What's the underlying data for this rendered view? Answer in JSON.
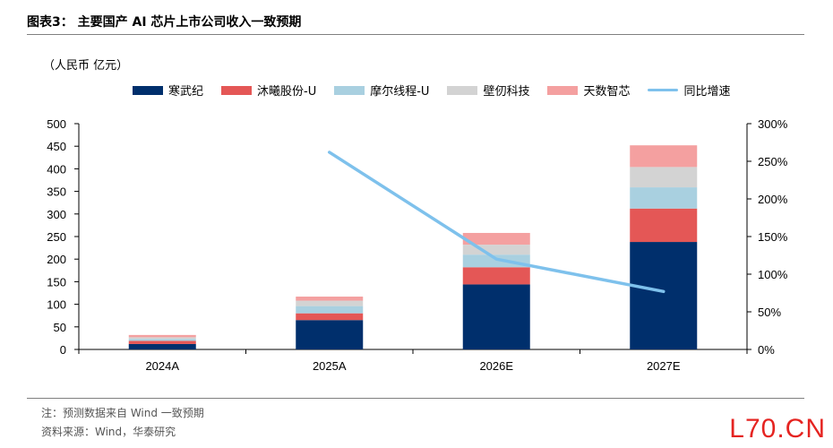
{
  "header": {
    "title": "图表3： 主要国产 AI 芯片上市公司收入一致预期",
    "unit": "（人民币 亿元）"
  },
  "footer": {
    "note": "注：预测数据来自 Wind 一致预期",
    "source": "资料来源：Wind，华泰研究",
    "watermark": "L70.CN"
  },
  "colors": {
    "cambricon": "#002f6c",
    "moxi": "#e45756",
    "moore": "#a9d0e0",
    "biren": "#d3d3d3",
    "tianshu": "#f4a0a0",
    "yoy": "#7ec1ec"
  },
  "chart_data": {
    "type": "bar",
    "stacked": true,
    "categories": [
      "2024A",
      "2025A",
      "2026E",
      "2027E"
    ],
    "series": [
      {
        "name": "寒武纪",
        "color_key": "cambricon",
        "values": [
          12,
          65,
          144,
          238
        ]
      },
      {
        "name": "沐曦股份-U",
        "color_key": "moxi",
        "values": [
          7,
          15,
          38,
          74
        ]
      },
      {
        "name": "摩尔线程-U",
        "color_key": "moore",
        "values": [
          4,
          16,
          28,
          47
        ]
      },
      {
        "name": "壁仞科技",
        "color_key": "biren",
        "values": [
          4,
          12,
          22,
          45
        ]
      },
      {
        "name": "天数智芯",
        "color_key": "tianshu",
        "values": [
          5,
          9,
          26,
          48
        ]
      }
    ],
    "line_series": {
      "name": "同比增速",
      "color_key": "yoy",
      "axis": "right",
      "values": [
        null,
        262,
        120,
        77
      ]
    },
    "y_left": {
      "min": 0,
      "max": 500,
      "step": 50,
      "ticks": [
        "0",
        "50",
        "100",
        "150",
        "200",
        "250",
        "300",
        "350",
        "400",
        "450",
        "500"
      ]
    },
    "y_right": {
      "min": 0,
      "max": 300,
      "step": 50,
      "ticks": [
        "0%",
        "50%",
        "100%",
        "150%",
        "200%",
        "250%",
        "300%"
      ]
    },
    "legend_position": "top",
    "grid": false
  }
}
